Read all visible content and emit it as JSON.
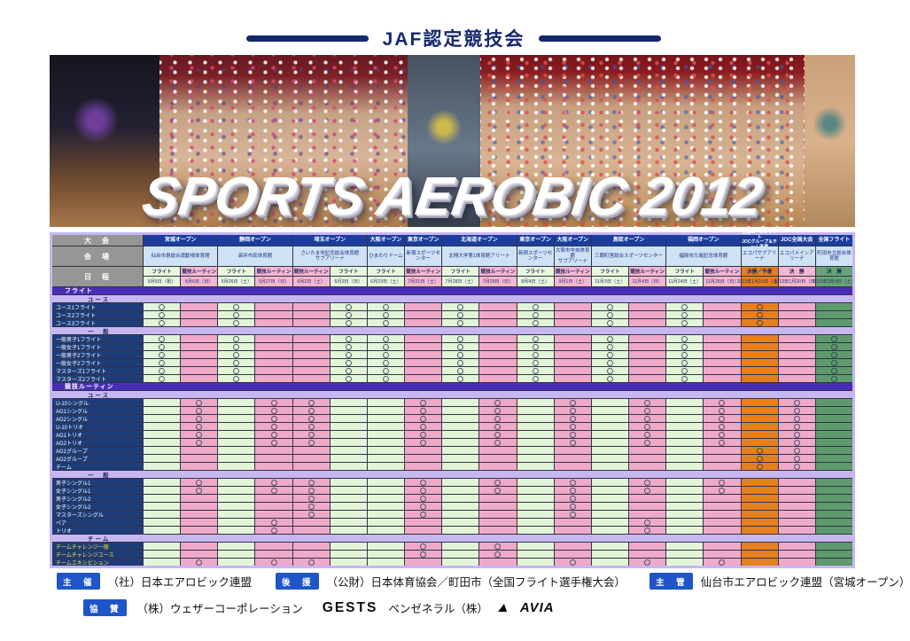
{
  "header": {
    "title": "JAF認定競技会"
  },
  "banner": {
    "title": "SPORTS AEROBIC 2012"
  },
  "table": {
    "corner_labels": {
      "event": "大　会",
      "venue": "会　場",
      "date": "日　程"
    },
    "groups": [
      {
        "name": "宮城オープン",
        "venue": "仙台市泉総合運動場体育館",
        "span": 2
      },
      {
        "name": "静岡オープン",
        "venue": "袋井市民体育館",
        "span": 2
      },
      {
        "name": "埼玉オープン",
        "venue": "さいたま市記念総合体育館\nサブアリーナ",
        "span": 2
      },
      {
        "name": "大阪オープン",
        "venue": "ひまわりドーム",
        "span": 1
      },
      {
        "name": "東京オープン",
        "venue": "新宿スポーツセンター",
        "span": 1
      },
      {
        "name": "北海道オープン",
        "venue": "北翔大学第1体育館アリーナ",
        "span": 2
      },
      {
        "name": "東京オープン",
        "venue": "新宿スポーツセンター",
        "span": 1
      },
      {
        "name": "大阪オープン",
        "venue": "大阪市中央体育館\nサブアリーナ",
        "span": 1
      },
      {
        "name": "鳥取オープン",
        "venue": "三朝町営総合スポーツセンター",
        "span": 2
      },
      {
        "name": "福岡オープン",
        "venue": "福岡市九電記念体育館",
        "span": 2
      },
      {
        "name": "全国ユースフライト\nJOCグループ＆チーム予選",
        "venue": "エコパサブアリーナ",
        "span": 1,
        "two_line": true
      },
      {
        "name": "JOC全国大会",
        "venue": "エコパメインアリーナ",
        "span": 1
      },
      {
        "name": "全国フライト",
        "venue": "町田市立総合体育館",
        "span": 1
      }
    ],
    "columns": [
      {
        "kind": "フライト",
        "date": "5月5日（祝）",
        "color": "green"
      },
      {
        "kind": "競技ルーティン",
        "date": "5月6日（日）",
        "color": "pink"
      },
      {
        "kind": "フライト",
        "date": "5月26日（土）",
        "color": "green"
      },
      {
        "kind": "競技ルーティン",
        "date": "5月27日（日）",
        "color": "pink"
      },
      {
        "kind": "競技ルーティン",
        "date": "6月2日（土）",
        "color": "pink"
      },
      {
        "kind": "フライト",
        "date": "6月3日（日）",
        "color": "green"
      },
      {
        "kind": "フライト",
        "date": "6月23日（土）",
        "color": "green"
      },
      {
        "kind": "競技ルーティン",
        "date": "7月21日（土）",
        "color": "pink"
      },
      {
        "kind": "フライト",
        "date": "7月28日（土）",
        "color": "green"
      },
      {
        "kind": "競技ルーティン",
        "date": "7月29日（日）",
        "color": "pink"
      },
      {
        "kind": "フライト",
        "date": "8月4日（土）",
        "color": "green"
      },
      {
        "kind": "競技ルーティン",
        "date": "9月1日（土）",
        "color": "pink"
      },
      {
        "kind": "フライト",
        "date": "11月3日（土）",
        "color": "green"
      },
      {
        "kind": "競技ルーティン",
        "date": "11月4日（日）",
        "color": "pink"
      },
      {
        "kind": "フライト",
        "date": "11月24日（土）",
        "color": "green"
      },
      {
        "kind": "競技ルーティン",
        "date": "11月25日（日）",
        "color": "pink"
      },
      {
        "kind": "決勝／予選",
        "date": "2013年1月19日（土）",
        "color": "orange"
      },
      {
        "kind": "決　勝",
        "date": "2013年1月20日（日）",
        "color": "joc"
      },
      {
        "kind": "決　勝",
        "date": "2013年3月9日（土）",
        "color": "final"
      }
    ],
    "sections": [
      {
        "label": "フライト",
        "subsections": [
          {
            "label": "ユース",
            "rows": [
              {
                "label": "ユース1フライト",
                "marks": [
                  0,
                  2,
                  5,
                  6,
                  8,
                  10,
                  12,
                  14,
                  16
                ]
              },
              {
                "label": "ユース2フライト",
                "marks": [
                  0,
                  2,
                  5,
                  6,
                  8,
                  10,
                  12,
                  14,
                  16
                ]
              },
              {
                "label": "ユース3フライト",
                "marks": [
                  0,
                  2,
                  5,
                  6,
                  8,
                  10,
                  12,
                  14,
                  16
                ]
              }
            ]
          },
          {
            "label": "一　般",
            "rows": [
              {
                "label": "一般男子1フライト",
                "marks": [
                  0,
                  2,
                  5,
                  6,
                  8,
                  10,
                  12,
                  14,
                  18
                ]
              },
              {
                "label": "一般女子1フライト",
                "marks": [
                  0,
                  2,
                  5,
                  6,
                  8,
                  10,
                  12,
                  14,
                  18
                ]
              },
              {
                "label": "一般男子2フライト",
                "marks": [
                  0,
                  2,
                  5,
                  6,
                  8,
                  10,
                  12,
                  14,
                  18
                ]
              },
              {
                "label": "一般女子2フライト",
                "marks": [
                  0,
                  2,
                  5,
                  6,
                  8,
                  10,
                  12,
                  14,
                  18
                ]
              },
              {
                "label": "マスターズ1フライト",
                "marks": [
                  0,
                  2,
                  5,
                  6,
                  8,
                  10,
                  12,
                  14,
                  18
                ]
              },
              {
                "label": "マスターズ2フライト",
                "marks": [
                  0,
                  2,
                  5,
                  6,
                  8,
                  10,
                  12,
                  14,
                  18
                ]
              }
            ]
          }
        ]
      },
      {
        "label": "競技ルーティン",
        "subsections": [
          {
            "label": "ユース",
            "rows": [
              {
                "label": "U-10シングル",
                "marks": [
                  1,
                  3,
                  4,
                  7,
                  9,
                  11,
                  13,
                  15,
                  17
                ]
              },
              {
                "label": "AG1シングル",
                "marks": [
                  1,
                  3,
                  4,
                  7,
                  9,
                  11,
                  13,
                  15,
                  17
                ]
              },
              {
                "label": "AG2シングル",
                "marks": [
                  1,
                  3,
                  4,
                  7,
                  9,
                  11,
                  13,
                  15,
                  17
                ]
              },
              {
                "label": "U-10トリオ",
                "marks": [
                  1,
                  3,
                  4,
                  7,
                  9,
                  11,
                  13,
                  15,
                  17
                ]
              },
              {
                "label": "AG1トリオ",
                "marks": [
                  1,
                  3,
                  4,
                  7,
                  9,
                  11,
                  13,
                  15,
                  17
                ]
              },
              {
                "label": "AG2トリオ",
                "marks": [
                  1,
                  3,
                  4,
                  7,
                  9,
                  11,
                  13,
                  15,
                  17
                ]
              },
              {
                "label": "AG1グループ",
                "marks": [
                  16,
                  17
                ]
              },
              {
                "label": "AG2グループ",
                "marks": [
                  16,
                  17
                ]
              },
              {
                "label": "チーム",
                "marks": [
                  16,
                  17
                ]
              }
            ]
          },
          {
            "label": "一　般",
            "rows": [
              {
                "label": "男子シングル1",
                "marks": [
                  1,
                  3,
                  4,
                  7,
                  9,
                  11,
                  13,
                  15
                ]
              },
              {
                "label": "女子シングル1",
                "marks": [
                  1,
                  3,
                  4,
                  7,
                  9,
                  11,
                  13,
                  15
                ]
              },
              {
                "label": "男子シングル2",
                "marks": [
                  4,
                  7,
                  11
                ]
              },
              {
                "label": "女子シングル2",
                "marks": [
                  4,
                  7,
                  11
                ]
              },
              {
                "label": "マスターズシングル",
                "marks": [
                  4,
                  7,
                  11
                ]
              },
              {
                "label": "ペア",
                "marks": [
                  3,
                  13
                ]
              },
              {
                "label": "トリオ",
                "marks": [
                  3,
                  13
                ]
              }
            ]
          },
          {
            "label": "チーム",
            "rows": [
              {
                "label": "チームチャレンジ一般",
                "marks": [
                  7,
                  9
                ],
                "highlight": true
              },
              {
                "label": "チームチャレンジユース",
                "marks": [
                  7,
                  9
                ],
                "highlight": true
              },
              {
                "label": "チームエキシビション",
                "marks": [
                  1,
                  3,
                  4,
                  11,
                  13,
                  15
                ],
                "highlight": true
              }
            ]
          }
        ]
      }
    ]
  },
  "footer": {
    "organizer": {
      "badge": "主　催",
      "text": "（社）日本エアロビック連盟"
    },
    "support": {
      "badge": "後　援",
      "text": "（公財）日本体育協会／町田市（全国フライト選手権大会）"
    },
    "management": {
      "badge": "主　管",
      "text": "仙台市エアロビック連盟（宮城オープン）"
    },
    "sponsor": {
      "badge": "協　賛",
      "text1": "（株）ウェザーコーポレーション",
      "logo1": "GESTS",
      "text2": "ベンゼネラル（株）",
      "logo2": "AVIA"
    }
  }
}
